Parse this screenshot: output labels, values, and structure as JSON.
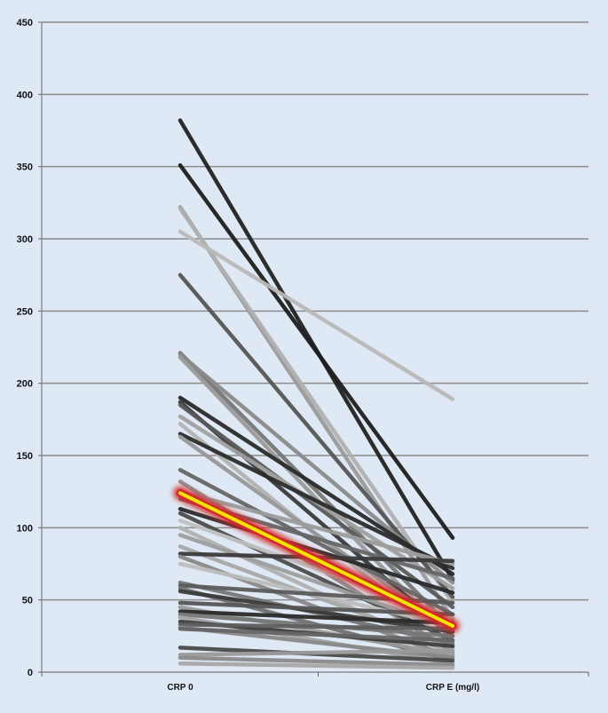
{
  "chart_data": {
    "type": "line",
    "title": "",
    "xlabel": "",
    "ylabel": "",
    "categories": [
      "CRP 0",
      "CRP E (mg/l)"
    ],
    "ylim": [
      0,
      450
    ],
    "yticks": [
      0,
      50,
      100,
      150,
      200,
      250,
      300,
      350,
      400,
      450
    ],
    "grid": true,
    "legend": "none",
    "colors": {
      "background": "#dfe9f5",
      "grid": "#8c8c8c",
      "axis": "#666666",
      "mean_line": "#f2e600",
      "mean_glow": "#d42a2a"
    },
    "patients": [
      {
        "values": [
          382,
          64
        ],
        "color": "#222222"
      },
      {
        "values": [
          351,
          93
        ],
        "color": "#1e1e1e"
      },
      {
        "values": [
          322,
          37
        ],
        "color": "#9a9a9a"
      },
      {
        "values": [
          321,
          48
        ],
        "color": "#b0b0b0"
      },
      {
        "values": [
          305,
          189
        ],
        "color": "#b8b8b8"
      },
      {
        "values": [
          275,
          52
        ],
        "color": "#555555"
      },
      {
        "values": [
          221,
          30
        ],
        "color": "#777777"
      },
      {
        "values": [
          220,
          62
        ],
        "color": "#8a8a8a"
      },
      {
        "values": [
          218,
          22
        ],
        "color": "#9a9a9a"
      },
      {
        "values": [
          190,
          68
        ],
        "color": "#2a2a2a"
      },
      {
        "values": [
          187,
          25
        ],
        "color": "#3a3a3a"
      },
      {
        "values": [
          185,
          45
        ],
        "color": "#5a5a5a"
      },
      {
        "values": [
          177,
          58
        ],
        "color": "#a0a0a0"
      },
      {
        "values": [
          172,
          18
        ],
        "color": "#b2b2b2"
      },
      {
        "values": [
          165,
          72
        ],
        "color": "#2c2c2c"
      },
      {
        "values": [
          163,
          28
        ],
        "color": "#989898"
      },
      {
        "values": [
          140,
          40
        ],
        "color": "#666666"
      },
      {
        "values": [
          132,
          14
        ],
        "color": "#8e8e8e"
      },
      {
        "values": [
          125,
          75
        ],
        "color": "#9c9c9c"
      },
      {
        "values": [
          120,
          65
        ],
        "color": "#666666"
      },
      {
        "values": [
          113,
          55
        ],
        "color": "#2a2a2a"
      },
      {
        "values": [
          110,
          22
        ],
        "color": "#4c4c4c"
      },
      {
        "values": [
          105,
          38
        ],
        "color": "#c0c0c0"
      },
      {
        "values": [
          100,
          12
        ],
        "color": "#b0b0b0"
      },
      {
        "values": [
          95,
          30
        ],
        "color": "#9e9e9e"
      },
      {
        "values": [
          87,
          17
        ],
        "color": "#a8a8a8"
      },
      {
        "values": [
          82,
          77
        ],
        "color": "#3a3a3a"
      },
      {
        "values": [
          80,
          10
        ],
        "color": "#888888"
      },
      {
        "values": [
          75,
          32
        ],
        "color": "#bdbdbd"
      },
      {
        "values": [
          62,
          20
        ],
        "color": "#777777"
      },
      {
        "values": [
          60,
          48
        ],
        "color": "#5a5a5a"
      },
      {
        "values": [
          58,
          8
        ],
        "color": "#707070"
      },
      {
        "values": [
          56,
          28
        ],
        "color": "#3a3a3a"
      },
      {
        "values": [
          48,
          40
        ],
        "color": "#555555"
      },
      {
        "values": [
          45,
          12
        ],
        "color": "#9a9a9a"
      },
      {
        "values": [
          42,
          34
        ],
        "color": "#2a2a2a"
      },
      {
        "values": [
          40,
          25
        ],
        "color": "#777777"
      },
      {
        "values": [
          38,
          6
        ],
        "color": "#a2a2a2"
      },
      {
        "values": [
          35,
          18
        ],
        "color": "#3e3e3e"
      },
      {
        "values": [
          33,
          30
        ],
        "color": "#5e5e5e"
      },
      {
        "values": [
          31,
          10
        ],
        "color": "#888888"
      },
      {
        "values": [
          30,
          22
        ],
        "color": "#666666"
      },
      {
        "values": [
          17,
          8
        ],
        "color": "#4a4a4a"
      },
      {
        "values": [
          12,
          15
        ],
        "color": "#9a9a9a"
      },
      {
        "values": [
          10,
          5
        ],
        "color": "#8a8a8a"
      },
      {
        "values": [
          6,
          3
        ],
        "color": "#a6a6a6"
      }
    ],
    "mean": {
      "values": [
        124,
        32
      ]
    }
  }
}
